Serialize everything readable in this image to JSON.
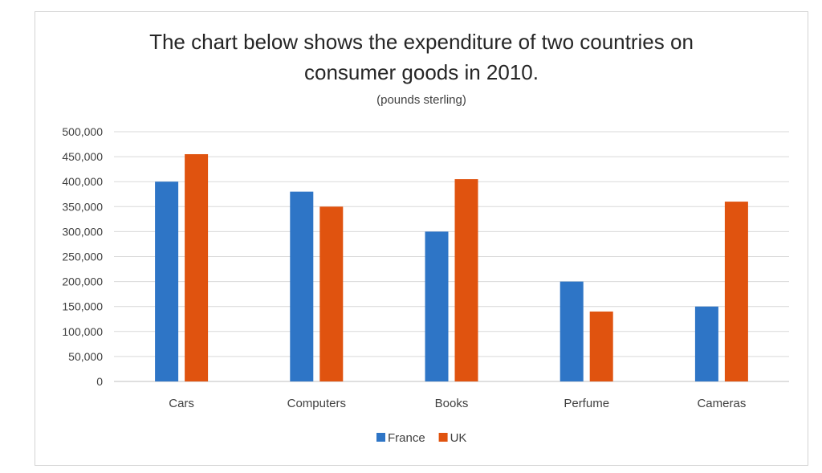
{
  "chart_data": {
    "type": "bar",
    "title_lines": [
      "The chart below shows the expenditure of two countries on",
      "consumer goods in 2010."
    ],
    "subtitle": "(pounds sterling)",
    "xlabel": "",
    "ylabel": "",
    "categories": [
      "Cars",
      "Computers",
      "Books",
      "Perfume",
      "Cameras"
    ],
    "series": [
      {
        "name": "France",
        "color": "#2e75c6",
        "values": [
          400000,
          380000,
          300000,
          200000,
          150000
        ]
      },
      {
        "name": "UK",
        "color": "#e0530f",
        "values": [
          455000,
          350000,
          405000,
          140000,
          360000
        ]
      }
    ],
    "ylim": [
      0,
      500000
    ],
    "ytick_step": 50000,
    "ytick_labels": [
      "0",
      "50,000",
      "100,000",
      "150,000",
      "200,000",
      "250,000",
      "300,000",
      "350,000",
      "400,000",
      "450,000",
      "500,000"
    ],
    "grid": true,
    "legend_position": "bottom"
  }
}
